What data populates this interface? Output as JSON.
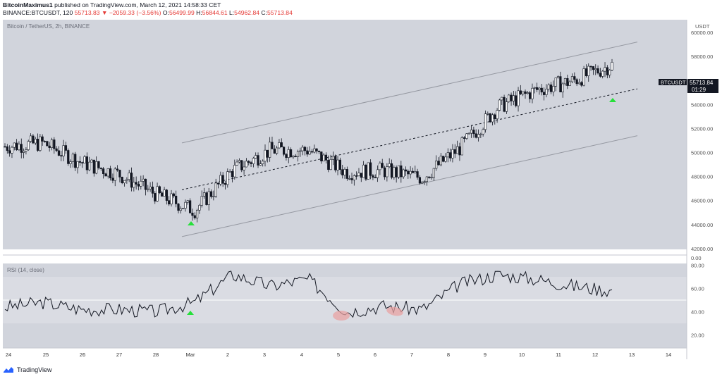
{
  "header": {
    "author": "BitcoinMaximus1",
    "published": "published on TradingView.com, March 12, 2021 14:58:33 CET",
    "symbol": "BINANCE:BTCUSDT, 120",
    "last": "55713.83",
    "change": "−2059.33 (−3.56%)",
    "o_label": "O:",
    "o_val": "56499.99",
    "h_label": "H:",
    "h_val": "56844.61",
    "l_label": "L:",
    "l_val": "54962.84",
    "c_label": "C:",
    "c_val": "55713.84"
  },
  "chart": {
    "watermark": "Bitcoin / TetherUS, 2h, BINANCE",
    "currency": "USDT",
    "price_tag": "55713.84",
    "price_tag_symbol": "BTCUSDT",
    "countdown": "01:29",
    "price_ticks": [
      "60000.00",
      "58000.00",
      "56000.00",
      "54000.00",
      "52000.00",
      "50000.00",
      "48000.00",
      "46000.00",
      "44000.00",
      "42000.00"
    ],
    "zero_tick": "0.00",
    "date_ticks": [
      "24",
      "25",
      "26",
      "27",
      "28",
      "Mar",
      "2",
      "3",
      "4",
      "5",
      "6",
      "7",
      "8",
      "9",
      "10",
      "11",
      "12",
      "13",
      "14"
    ],
    "rsi_label": "RSI (14, close)",
    "rsi_ticks": [
      "80.00",
      "60.00",
      "40.00",
      "20.00"
    ]
  },
  "colors": {
    "bg": "#d1d4dc",
    "rsiband": "#dadce3",
    "line": "#131722",
    "arrow": "#26e03a",
    "ellipse": "#e8a3a3"
  },
  "footer": {
    "brand": "TradingView"
  },
  "chart_data": {
    "type": "line",
    "symbol": "BTCUSDT",
    "interval": "2h",
    "price_range": [
      42000,
      61000
    ],
    "x": [
      "24",
      "25",
      "26",
      "27",
      "28",
      "Mar",
      "2",
      "3",
      "4",
      "5",
      "6",
      "7",
      "8",
      "9",
      "10",
      "11",
      "12"
    ],
    "series": [
      {
        "values": [
          50500,
          50800,
          49200,
          48200,
          46500,
          45200,
          48500,
          50200,
          50200,
          48400,
          48500,
          47900,
          50400,
          53800,
          55200,
          56000,
          57300
        ]
      },
      {
        "name": "RSI (14, close)",
        "values": [
          44,
          48,
          42,
          42,
          40,
          48,
          72,
          62,
          68,
          40,
          45,
          42,
          64,
          72,
          68,
          62,
          58
        ],
        "range": [
          0,
          85
        ]
      }
    ],
    "channel": {
      "lower_start": 43000,
      "upper_start": 50800,
      "mid_start": 46900,
      "lower_end": 51400,
      "upper_end": 59200,
      "mid_end": 55300
    },
    "rsi_band": [
      30,
      70
    ],
    "rsi_midline": 50
  }
}
